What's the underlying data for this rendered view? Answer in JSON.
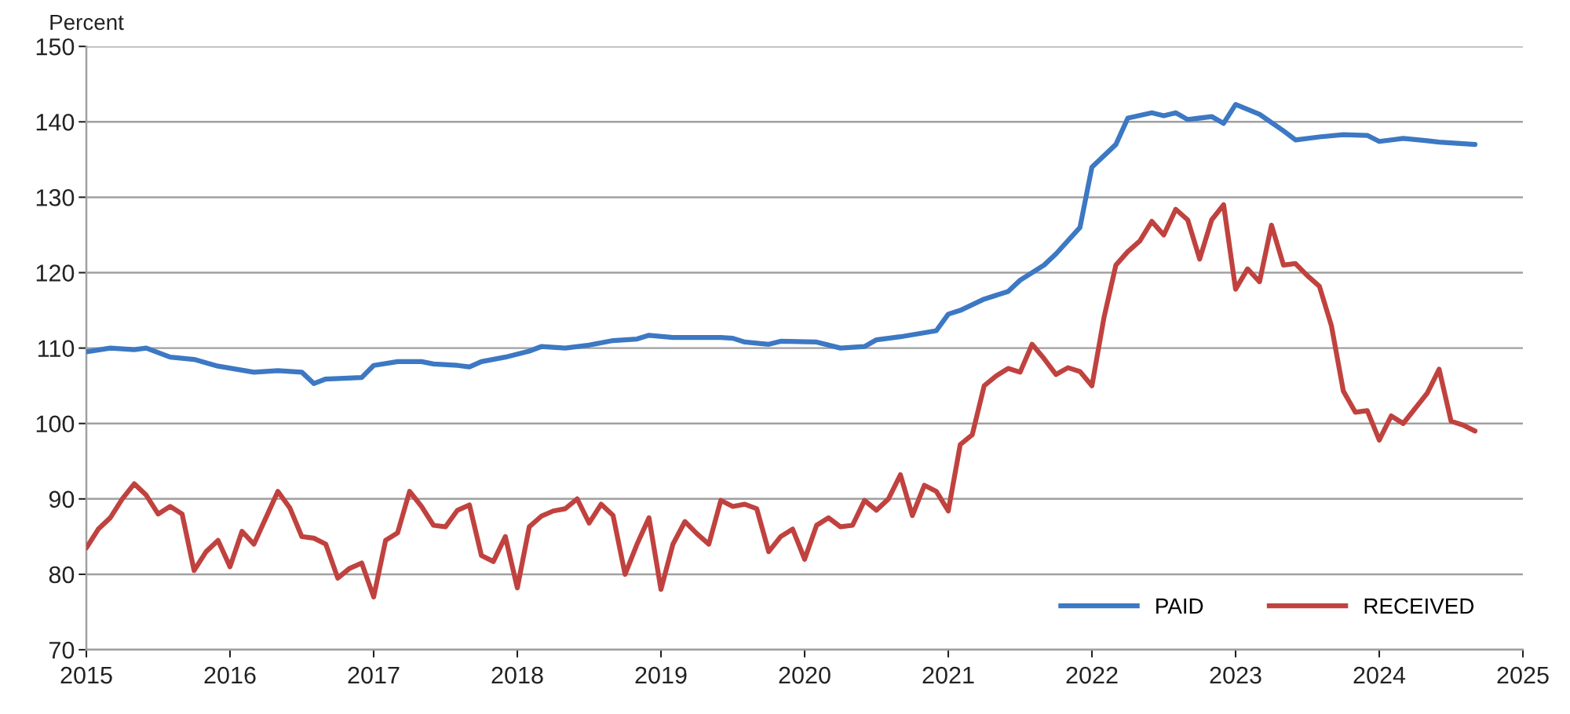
{
  "chart_data": {
    "type": "line",
    "ylabel": "Percent",
    "xlim": [
      "2015-01",
      "2025-01"
    ],
    "xticks": [
      {
        "value": "2015-01",
        "label": "2015"
      },
      {
        "value": "2016-01",
        "label": "2016"
      },
      {
        "value": "2017-01",
        "label": "2017"
      },
      {
        "value": "2018-01",
        "label": "2018"
      },
      {
        "value": "2019-01",
        "label": "2019"
      },
      {
        "value": "2020-01",
        "label": "2020"
      },
      {
        "value": "2021-01",
        "label": "2021"
      },
      {
        "value": "2022-01",
        "label": "2022"
      },
      {
        "value": "2023-01",
        "label": "2023"
      },
      {
        "value": "2024-01",
        "label": "2024"
      },
      {
        "value": "2025-01",
        "label": "2025"
      }
    ],
    "ylim": [
      70,
      150
    ],
    "yticks": [
      70,
      80,
      90,
      100,
      110,
      120,
      130,
      140,
      150
    ],
    "grid": "y",
    "legend": "bottom right",
    "marker": "none",
    "line_style": "solid",
    "series": [
      {
        "name": "PAID",
        "color": "#3c78c3",
        "x": [
          "2015-01",
          "2015-03",
          "2015-05",
          "2015-06",
          "2015-08",
          "2015-10",
          "2015-12",
          "2016-03",
          "2016-05",
          "2016-07",
          "2016-08",
          "2016-09",
          "2016-12",
          "2017-01",
          "2017-03",
          "2017-05",
          "2017-06",
          "2017-08",
          "2017-09",
          "2017-10",
          "2017-12",
          "2018-02",
          "2018-03",
          "2018-05",
          "2018-07",
          "2018-09",
          "2018-11",
          "2018-12",
          "2019-02",
          "2019-06",
          "2019-07",
          "2019-08",
          "2019-10",
          "2019-11",
          "2020-02",
          "2020-04",
          "2020-06",
          "2020-07",
          "2020-09",
          "2020-12",
          "2021-01",
          "2021-02",
          "2021-04",
          "2021-06",
          "2021-07",
          "2021-09",
          "2021-10",
          "2021-12",
          "2022-01",
          "2022-03",
          "2022-04",
          "2022-06",
          "2022-07",
          "2022-08",
          "2022-09",
          "2022-11",
          "2022-12",
          "2023-01",
          "2023-03",
          "2023-05",
          "2023-06",
          "2023-08",
          "2023-10",
          "2023-12",
          "2024-01",
          "2024-03",
          "2024-05",
          "2024-06",
          "2024-09"
        ],
        "values": [
          109.5,
          110,
          109.8,
          110,
          108.8,
          108.5,
          107.6,
          106.8,
          107,
          106.8,
          105.3,
          105.9,
          106.1,
          107.7,
          108.2,
          108.2,
          107.9,
          107.7,
          107.5,
          108.2,
          108.8,
          109.6,
          110.2,
          110,
          110.4,
          111,
          111.2,
          111.7,
          111.4,
          111.4,
          111.3,
          110.8,
          110.5,
          110.9,
          110.8,
          110,
          110.2,
          111.1,
          111.5,
          112.3,
          114.5,
          115,
          116.5,
          117.5,
          119,
          121,
          122.5,
          126,
          134,
          137,
          140.5,
          141.2,
          140.8,
          141.2,
          140.3,
          140.7,
          139.8,
          142.3,
          141,
          138.8,
          137.6,
          138,
          138.3,
          138.2,
          137.4,
          137.8,
          137.5,
          137.3,
          137
        ]
      },
      {
        "name": "RECEIVED",
        "color": "#c0423f",
        "x": [
          "2015-01",
          "2015-02",
          "2015-03",
          "2015-04",
          "2015-05",
          "2015-06",
          "2015-07",
          "2015-08",
          "2015-09",
          "2015-10",
          "2015-11",
          "2015-12",
          "2016-01",
          "2016-02",
          "2016-03",
          "2016-04",
          "2016-05",
          "2016-06",
          "2016-07",
          "2016-08",
          "2016-09",
          "2016-10",
          "2016-11",
          "2016-12",
          "2017-01",
          "2017-02",
          "2017-03",
          "2017-04",
          "2017-05",
          "2017-06",
          "2017-07",
          "2017-08",
          "2017-09",
          "2017-10",
          "2017-11",
          "2017-12",
          "2018-01",
          "2018-02",
          "2018-03",
          "2018-04",
          "2018-05",
          "2018-06",
          "2018-07",
          "2018-08",
          "2018-09",
          "2018-10",
          "2018-11",
          "2018-12",
          "2019-01",
          "2019-02",
          "2019-03",
          "2019-04",
          "2019-05",
          "2019-06",
          "2019-07",
          "2019-08",
          "2019-09",
          "2019-10",
          "2019-11",
          "2019-12",
          "2020-01",
          "2020-02",
          "2020-03",
          "2020-04",
          "2020-05",
          "2020-06",
          "2020-07",
          "2020-08",
          "2020-09",
          "2020-10",
          "2020-11",
          "2020-12",
          "2021-01",
          "2021-02",
          "2021-03",
          "2021-04",
          "2021-05",
          "2021-06",
          "2021-07",
          "2021-08",
          "2021-09",
          "2021-10",
          "2021-11",
          "2021-12",
          "2022-01",
          "2022-02",
          "2022-03",
          "2022-04",
          "2022-05",
          "2022-06",
          "2022-07",
          "2022-08",
          "2022-09",
          "2022-10",
          "2022-11",
          "2022-12",
          "2023-01",
          "2023-02",
          "2023-03",
          "2023-04",
          "2023-05",
          "2023-06",
          "2023-07",
          "2023-08",
          "2023-09",
          "2023-10",
          "2023-11",
          "2023-12",
          "2024-01",
          "2024-02",
          "2024-03",
          "2024-04",
          "2024-05",
          "2024-06",
          "2024-07",
          "2024-08",
          "2024-09"
        ],
        "values": [
          83.5,
          86,
          87.5,
          90,
          92,
          90.5,
          88,
          89,
          88,
          80.5,
          83,
          84.5,
          81,
          85.7,
          84,
          87.5,
          91,
          88.8,
          85,
          84.8,
          84,
          79.5,
          80.8,
          81.5,
          77,
          84.5,
          85.5,
          91,
          89,
          86.5,
          86.3,
          88.5,
          89.2,
          82.5,
          81.7,
          85,
          78.2,
          86.3,
          87.7,
          88.4,
          88.7,
          90,
          86.8,
          89.3,
          87.8,
          80,
          84,
          87.5,
          78,
          84,
          87,
          85.4,
          84,
          89.8,
          89,
          89.3,
          88.7,
          83,
          85,
          86,
          82,
          86.5,
          87.5,
          86.3,
          86.5,
          89.8,
          88.5,
          90,
          93.2,
          87.8,
          91.8,
          91,
          88.4,
          97.2,
          98.5,
          105,
          106.3,
          107.3,
          106.8,
          110.5,
          108.6,
          106.5,
          107.4,
          106.9,
          105,
          114,
          121,
          122.8,
          124.2,
          126.8,
          125,
          128.4,
          127,
          121.8,
          127,
          129,
          117.8,
          120.5,
          118.8,
          126.3,
          121,
          121.2,
          119.6,
          118.2,
          113,
          104.3,
          101.5,
          101.7,
          97.8,
          101,
          100,
          102,
          104,
          107.2,
          100.3,
          99.8,
          99
        ]
      }
    ]
  }
}
